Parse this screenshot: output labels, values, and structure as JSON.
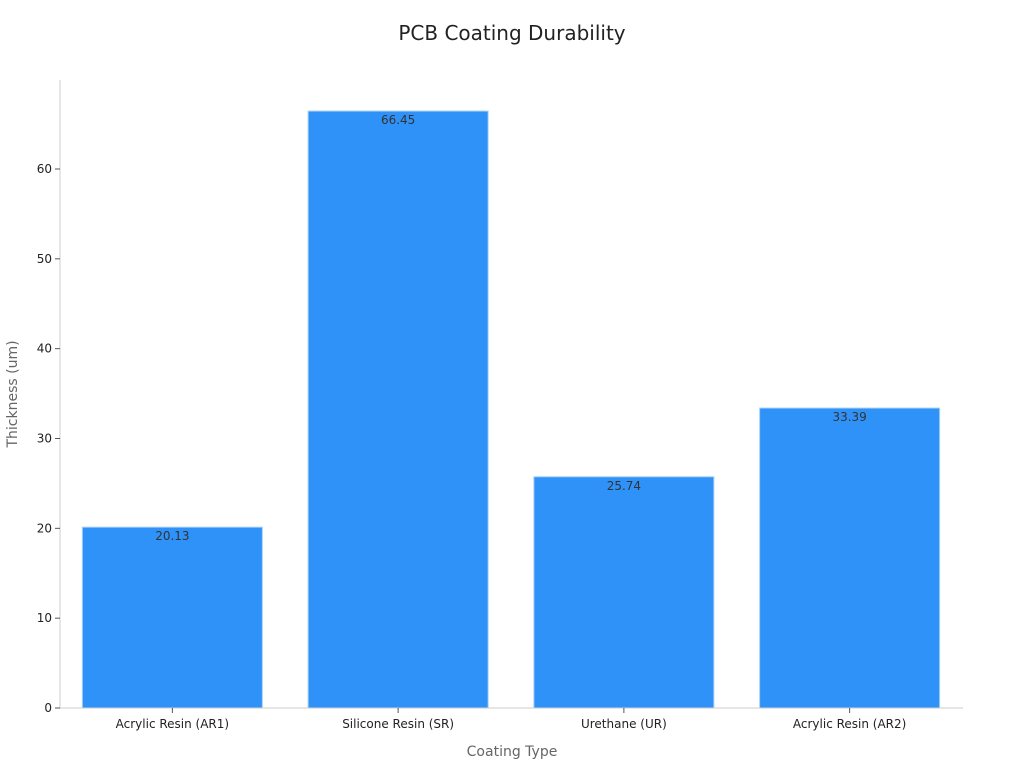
{
  "chart_data": {
    "type": "bar",
    "title": "PCB Coating Durability",
    "xlabel": "Coating Type",
    "ylabel": "Thickness (um)",
    "categories": [
      "Acrylic Resin (AR1)",
      "Silicone Resin (SR)",
      "Urethane (UR)",
      "Acrylic Resin (AR2)"
    ],
    "values": [
      20.13,
      66.45,
      25.74,
      33.39
    ],
    "value_labels": [
      "20.13",
      "66.45",
      "25.74",
      "33.39"
    ],
    "ylim": [
      0,
      70
    ],
    "yticks": [
      0,
      10,
      20,
      30,
      40,
      50,
      60
    ],
    "grid": false,
    "bar_color": "#2f92f8",
    "bar_edge_color": "#a8d0f5"
  }
}
